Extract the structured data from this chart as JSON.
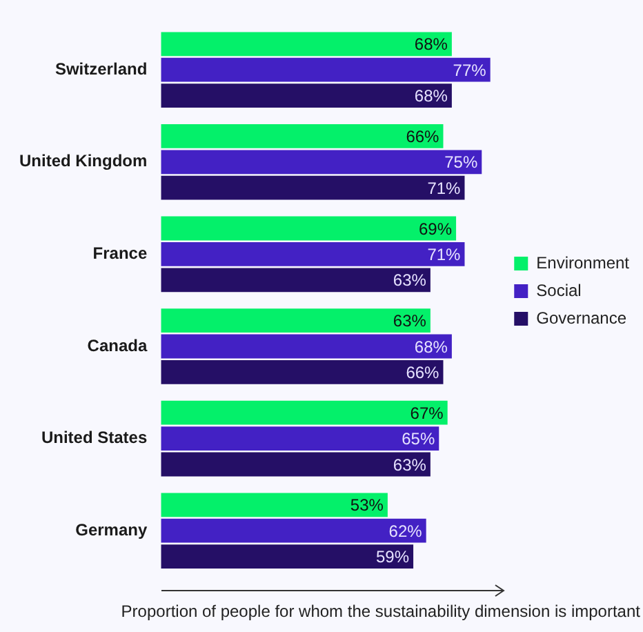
{
  "chart_data": {
    "type": "bar",
    "orientation": "horizontal",
    "xlabel": "Proportion of people for whom the sustainability dimension is important",
    "categories": [
      "Switzerland",
      "United Kingdom",
      "France",
      "Canada",
      "United States",
      "Germany"
    ],
    "series": [
      {
        "name": "Environment",
        "color": "#04f06a",
        "values": [
          68,
          66,
          69,
          63,
          67,
          53
        ],
        "value_labels": [
          "68%",
          "66%",
          "69%",
          "63%",
          "67%",
          "53%"
        ]
      },
      {
        "name": "Social",
        "color": "#4321c4",
        "values": [
          77,
          75,
          71,
          68,
          65,
          62
        ],
        "value_labels": [
          "77%",
          "75%",
          "71%",
          "68%",
          "65%",
          "62%"
        ]
      },
      {
        "name": "Governance",
        "color": "#250f66",
        "values": [
          68,
          71,
          63,
          66,
          63,
          59
        ],
        "value_labels": [
          "68%",
          "71%",
          "63%",
          "66%",
          "63%",
          "59%"
        ]
      }
    ],
    "tick_labels": "y",
    "legend": "right"
  }
}
